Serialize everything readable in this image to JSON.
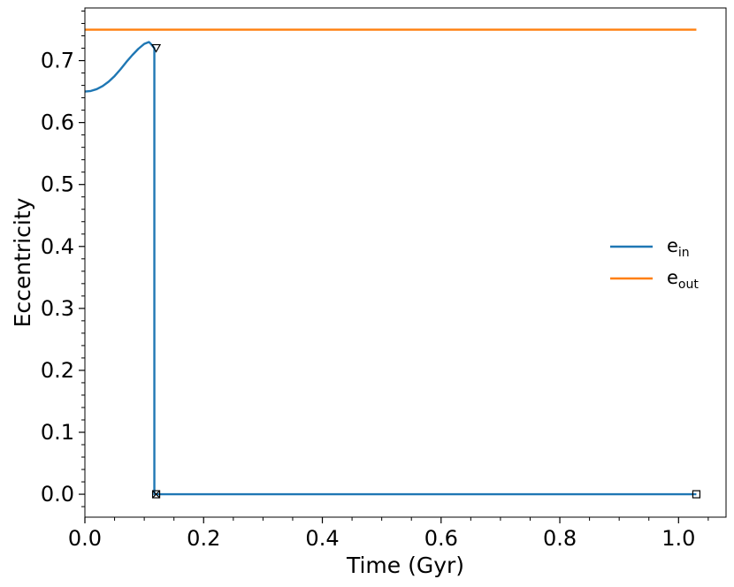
{
  "chart_data": {
    "type": "line",
    "title": "",
    "xlabel": "Time (Gyr)",
    "ylabel": "Eccentricity",
    "xlim": [
      0.0,
      1.08
    ],
    "ylim": [
      -0.037,
      0.785
    ],
    "xticks": [
      0.0,
      0.2,
      0.4,
      0.6,
      0.8,
      1.0
    ],
    "xtick_labels": [
      "0.0",
      "0.2",
      "0.4",
      "0.6",
      "0.8",
      "1.0"
    ],
    "yticks": [
      0.0,
      0.1,
      0.2,
      0.3,
      0.4,
      0.5,
      0.6,
      0.7
    ],
    "ytick_labels": [
      "0.0",
      "0.1",
      "0.2",
      "0.3",
      "0.4",
      "0.5",
      "0.6",
      "0.7"
    ],
    "grid": false,
    "legend_position": "right",
    "series": [
      {
        "name": "e_in",
        "legend_base": "e",
        "legend_sub": "in",
        "color": "#1f77b4",
        "x": [
          0.0,
          0.01,
          0.02,
          0.03,
          0.04,
          0.05,
          0.06,
          0.07,
          0.08,
          0.09,
          0.1,
          0.108,
          0.112,
          0.117,
          0.117,
          0.12,
          0.12,
          0.2,
          0.4,
          0.6,
          0.8,
          1.0,
          1.03
        ],
        "y": [
          0.65,
          0.651,
          0.654,
          0.659,
          0.666,
          0.675,
          0.686,
          0.698,
          0.709,
          0.719,
          0.727,
          0.73,
          0.726,
          0.72,
          0.0,
          0.0,
          0.0,
          0.0,
          0.0,
          0.0,
          0.0,
          0.0,
          0.0
        ]
      },
      {
        "name": "e_out",
        "legend_base": "e",
        "legend_sub": "out",
        "color": "#ff7f0e",
        "x": [
          0.0,
          1.03
        ],
        "y": [
          0.75,
          0.75
        ]
      }
    ],
    "markers": [
      {
        "shape": "triangle-down",
        "x": 0.12,
        "y": 0.72
      },
      {
        "shape": "square",
        "x": 0.12,
        "y": 0.0
      },
      {
        "shape": "x",
        "x": 0.12,
        "y": 0.0
      },
      {
        "shape": "square",
        "x": 1.03,
        "y": 0.0
      }
    ]
  }
}
